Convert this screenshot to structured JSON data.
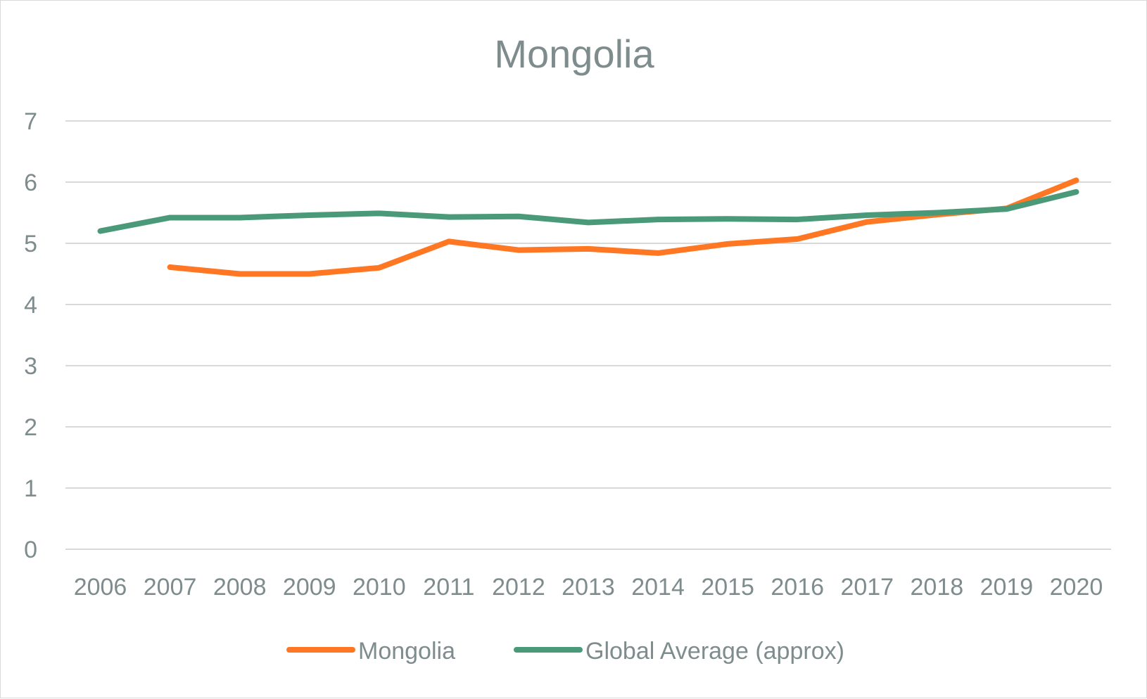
{
  "chart_data": {
    "type": "line",
    "title": "Mongolia",
    "xlabel": "",
    "ylabel": "",
    "categories": [
      "2006",
      "2007",
      "2008",
      "2009",
      "2010",
      "2011",
      "2012",
      "2013",
      "2014",
      "2015",
      "2016",
      "2017",
      "2018",
      "2019",
      "2020"
    ],
    "ylim": [
      0,
      7
    ],
    "yticks": [
      "0",
      "1",
      "2",
      "3",
      "4",
      "5",
      "6",
      "7"
    ],
    "grid": true,
    "legend_position": "bottom",
    "series": [
      {
        "name": "Mongolia",
        "color": "#ff7722",
        "values": [
          null,
          4.61,
          4.5,
          4.5,
          4.6,
          5.03,
          4.89,
          4.91,
          4.84,
          4.99,
          5.07,
          5.35,
          5.47,
          5.57,
          6.03
        ]
      },
      {
        "name": "Global Average (approx)",
        "color": "#4a9a7a",
        "values": [
          5.2,
          5.42,
          5.42,
          5.46,
          5.49,
          5.43,
          5.44,
          5.34,
          5.39,
          5.4,
          5.39,
          5.46,
          5.5,
          5.56,
          5.84
        ]
      }
    ]
  }
}
